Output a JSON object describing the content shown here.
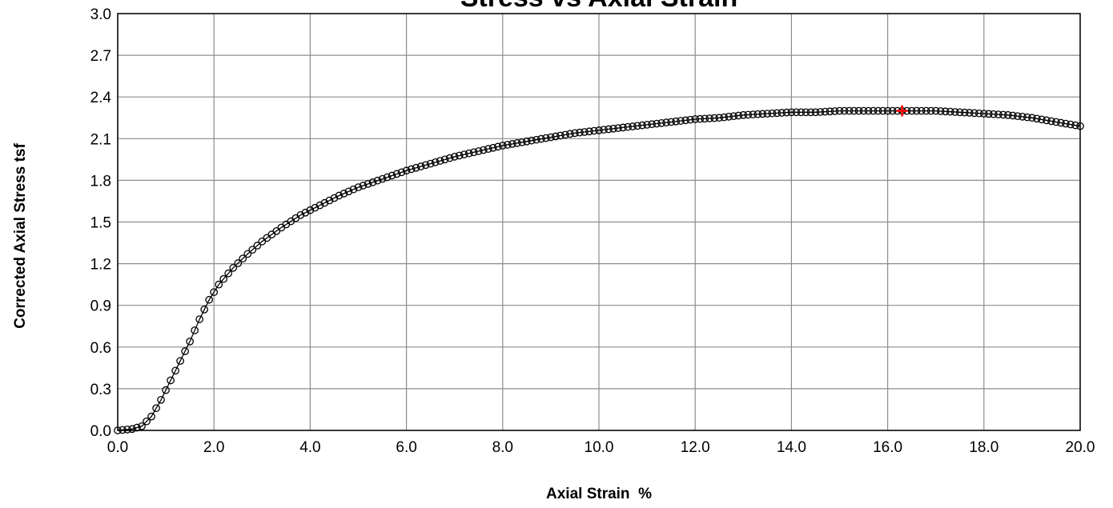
{
  "chart_data": {
    "type": "scatter",
    "title": "Stress vs Axial Strain",
    "xlabel": "Axial Strain  %",
    "ylabel": "Corrected Axial Stress tsf",
    "xlim": [
      0,
      20
    ],
    "ylim": [
      0,
      3
    ],
    "x_ticks": [
      "0.0",
      "2.0",
      "4.0",
      "6.0",
      "8.0",
      "10.0",
      "12.0",
      "14.0",
      "16.0",
      "18.0",
      "20.0"
    ],
    "y_ticks": [
      "0.0",
      "0.3",
      "0.6",
      "0.9",
      "1.2",
      "1.5",
      "1.8",
      "2.1",
      "2.4",
      "2.7",
      "3.0"
    ],
    "grid": true,
    "legend": "none",
    "series": [
      {
        "marker": "open-circle",
        "color": "#000000",
        "points": [
          [
            0.0,
            0.0
          ],
          [
            0.3,
            0.01
          ],
          [
            0.5,
            0.03
          ],
          [
            0.7,
            0.1
          ],
          [
            0.9,
            0.22
          ],
          [
            1.1,
            0.36
          ],
          [
            1.3,
            0.5
          ],
          [
            1.5,
            0.64
          ],
          [
            1.7,
            0.8
          ],
          [
            1.9,
            0.94
          ],
          [
            2.1,
            1.05
          ],
          [
            2.4,
            1.17
          ],
          [
            2.7,
            1.27
          ],
          [
            3.0,
            1.36
          ],
          [
            3.4,
            1.46
          ],
          [
            3.8,
            1.55
          ],
          [
            4.2,
            1.62
          ],
          [
            4.6,
            1.69
          ],
          [
            5.0,
            1.75
          ],
          [
            5.5,
            1.81
          ],
          [
            6.0,
            1.87
          ],
          [
            6.5,
            1.92
          ],
          [
            7.0,
            1.97
          ],
          [
            7.5,
            2.01
          ],
          [
            8.0,
            2.05
          ],
          [
            8.5,
            2.08
          ],
          [
            9.0,
            2.11
          ],
          [
            9.5,
            2.14
          ],
          [
            10.0,
            2.16
          ],
          [
            10.5,
            2.18
          ],
          [
            11.0,
            2.2
          ],
          [
            11.5,
            2.22
          ],
          [
            12.0,
            2.24
          ],
          [
            12.5,
            2.25
          ],
          [
            13.0,
            2.27
          ],
          [
            13.5,
            2.28
          ],
          [
            14.0,
            2.29
          ],
          [
            14.5,
            2.29
          ],
          [
            15.0,
            2.3
          ],
          [
            15.5,
            2.3
          ],
          [
            16.0,
            2.3
          ],
          [
            16.5,
            2.3
          ],
          [
            17.0,
            2.3
          ],
          [
            17.5,
            2.29
          ],
          [
            18.0,
            2.28
          ],
          [
            18.5,
            2.27
          ],
          [
            19.0,
            2.25
          ],
          [
            19.5,
            2.22
          ],
          [
            20.0,
            2.19
          ]
        ]
      }
    ],
    "peak_marker": {
      "x": 16.3,
      "y": 2.3,
      "marker": "plus",
      "color": "#ff0000"
    }
  }
}
